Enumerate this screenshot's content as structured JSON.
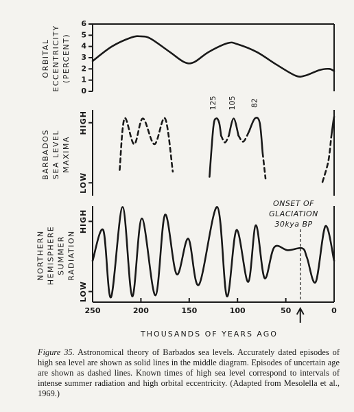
{
  "chart_data": [
    {
      "type": "line",
      "ylabel": [
        "ORBITAL",
        "ECCENTRICITY",
        "(PERCENT)"
      ],
      "xlim": [
        250,
        0
      ],
      "ylim": [
        0,
        6
      ],
      "yticks": [
        0,
        1,
        2,
        3,
        4,
        5,
        6
      ],
      "series": [
        {
          "color": "#1a1a1a",
          "style": "solid",
          "x": [
            250,
            230,
            210,
            200,
            190,
            170,
            155,
            145,
            130,
            110,
            100,
            80,
            60,
            40,
            30,
            15,
            5,
            0
          ],
          "values": [
            2.7,
            4.0,
            4.8,
            4.9,
            4.7,
            3.5,
            2.6,
            2.6,
            3.5,
            4.3,
            4.2,
            3.5,
            2.4,
            1.4,
            1.4,
            1.9,
            2.0,
            1.8
          ]
        }
      ]
    },
    {
      "type": "line",
      "ylabel": [
        "BARBADOS",
        "SEA LEVEL",
        "MAXIMA"
      ],
      "xlim": [
        250,
        0
      ],
      "ylim": [
        0,
        10
      ],
      "yticks": [
        {
          "value": 1.5,
          "label": "LOW"
        },
        {
          "value": 8.5,
          "label": "HIGH"
        }
      ],
      "peak_labels": [
        125,
        105,
        82
      ],
      "series": [
        {
          "color": "#1a1a1a",
          "style": "dashed",
          "x": [
            222,
            217,
            207,
            198,
            186,
            175,
            167
          ],
          "values": [
            3,
            9,
            6,
            9,
            6,
            9,
            2.8
          ]
        },
        {
          "color": "#1a1a1a",
          "style": "solid",
          "x": [
            129,
            125,
            122,
            119,
            117
          ],
          "values": [
            2.2,
            8,
            9,
            8.5,
            7
          ]
        },
        {
          "color": "#1a1a1a",
          "style": "dashed",
          "x": [
            117,
            113,
            109
          ],
          "values": [
            7,
            6.2,
            7
          ]
        },
        {
          "color": "#1a1a1a",
          "style": "solid",
          "x": [
            109,
            104,
            99
          ],
          "values": [
            7,
            9,
            7
          ]
        },
        {
          "color": "#1a1a1a",
          "style": "dashed",
          "x": [
            99,
            94,
            88
          ],
          "values": [
            7,
            6.3,
            7.5
          ]
        },
        {
          "color": "#1a1a1a",
          "style": "solid",
          "x": [
            88,
            82,
            77,
            74
          ],
          "values": [
            7.5,
            9,
            8.5,
            5
          ]
        },
        {
          "color": "#1a1a1a",
          "style": "dashed",
          "x": [
            74,
            72,
            71
          ],
          "values": [
            5,
            3,
            2
          ]
        },
        {
          "color": "#1a1a1a",
          "style": "dashed",
          "x": [
            12,
            6,
            3
          ],
          "values": [
            1.6,
            4,
            6.8
          ]
        },
        {
          "color": "#1a1a1a",
          "style": "solid",
          "x": [
            3,
            1,
            0
          ],
          "values": [
            6.8,
            8.5,
            9.2
          ]
        }
      ]
    },
    {
      "type": "line",
      "ylabel": [
        "NORTHERN",
        "HEMISPHERE",
        "SUMMER",
        "RADIATION"
      ],
      "xlabel": "THOUSANDS OF YEARS AGO",
      "xlim": [
        250,
        0
      ],
      "xticks": [
        250,
        200,
        150,
        100,
        50,
        0
      ],
      "ylim": [
        0,
        10
      ],
      "yticks": [
        {
          "value": 1.1,
          "label": "LOW"
        },
        {
          "value": 8.4,
          "label": "HIGH"
        }
      ],
      "annotation": {
        "text": [
          "ONSET OF",
          "GLACIATION",
          "30kya BP"
        ],
        "x": 35
      },
      "series": [
        {
          "color": "#1a1a1a",
          "style": "solid",
          "x": [
            250,
            239,
            231,
            219,
            209,
            199,
            185,
            175,
            163,
            151,
            140,
            121,
            111,
            101,
            89,
            81,
            72,
            62,
            48,
            33,
            28,
            19,
            9,
            0
          ],
          "values": [
            4.3,
            7.5,
            0.5,
            9.9,
            0.6,
            8.7,
            0.7,
            9.1,
            2.9,
            6.6,
            1.8,
            9.9,
            0.6,
            7.5,
            2.1,
            8.0,
            2.5,
            5.7,
            5.4,
            5.6,
            4.6,
            2.1,
            7.9,
            4.3
          ]
        }
      ]
    }
  ],
  "caption": {
    "label": "Figure 35.",
    "text": "Astronomical theory of Barbados sea levels. Accurately dated episodes of high sea level are shown as solid lines in the middle diagram. Episodes of uncertain age are shown as dashed lines. Known times of high sea level correspond to intervals of intense summer radiation and high orbital eccentricity. (Adapted from Mesolella et al., 1969.)"
  }
}
